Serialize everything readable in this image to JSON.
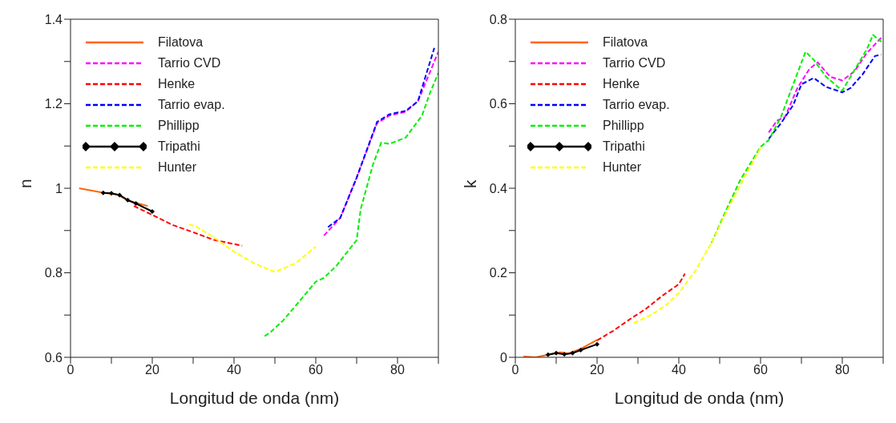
{
  "chart_data": [
    {
      "type": "line",
      "xlabel": "Longitud de onda (nm)",
      "ylabel": "n",
      "xlim": [
        0,
        90
      ],
      "ylim": [
        0.6,
        1.4
      ],
      "xticks": [
        0,
        {
          "value": 10,
          "label": null
        },
        20,
        {
          "value": 30,
          "label": null
        },
        40,
        {
          "value": 50,
          "label": null
        },
        60,
        {
          "value": 70,
          "label": null
        },
        80,
        {
          "value": 90,
          "label": null
        }
      ],
      "yticks": [
        0.6,
        {
          "value": 0.7,
          "label": null
        },
        0.8,
        {
          "value": 0.9,
          "label": null
        },
        1,
        {
          "value": 1.1,
          "label": null
        },
        1.2,
        {
          "value": 1.3,
          "label": null
        },
        1.4
      ],
      "legend": "top left",
      "series": [
        {
          "name": "Filatova",
          "color": "#ff6600",
          "line_style": "solid",
          "x": [
            2.1,
            8.2,
            11.5,
            14.2,
            18.9
          ],
          "values": [
            1.0,
            0.989,
            0.985,
            0.97,
            0.958
          ]
        },
        {
          "name": "Tarrio CVD",
          "color": "#ff00ff",
          "line_style": "dashed",
          "x": [
            62,
            66,
            70,
            75,
            78,
            82,
            85,
            90
          ],
          "values": [
            0.888,
            0.93,
            1.025,
            1.154,
            1.172,
            1.181,
            1.206,
            1.323
          ]
        },
        {
          "name": "Henke",
          "color": "#ff0000",
          "line_style": "dashed",
          "x": [
            15.5,
            20,
            25,
            30,
            35,
            42
          ],
          "values": [
            0.958,
            0.937,
            0.913,
            0.896,
            0.878,
            0.864
          ]
        },
        {
          "name": "Tarrio evap.",
          "color": "#0000ff",
          "line_style": "dashed",
          "x": [
            63,
            66,
            70,
            75,
            78,
            82,
            85,
            89
          ],
          "values": [
            0.908,
            0.93,
            1.025,
            1.157,
            1.175,
            1.183,
            1.206,
            1.332
          ]
        },
        {
          "name": "Phillipp",
          "color": "#00ee00",
          "line_style": "dashed",
          "x": [
            47.5,
            49,
            52,
            55,
            60,
            62,
            65,
            68,
            70,
            71,
            74,
            76,
            78,
            82,
            86,
            88,
            90
          ],
          "values": [
            0.65,
            0.66,
            0.687,
            0.721,
            0.779,
            0.788,
            0.816,
            0.853,
            0.877,
            0.951,
            1.056,
            1.108,
            1.105,
            1.12,
            1.172,
            1.227,
            1.273
          ]
        },
        {
          "name": "Tripathi",
          "color": "#000000",
          "line_style": "solid",
          "marker": "diamond",
          "x": [
            8,
            10,
            12,
            14,
            16,
            20
          ],
          "values": [
            0.989,
            0.988,
            0.984,
            0.972,
            0.964,
            0.945
          ]
        },
        {
          "name": "Hunter",
          "color": "#ffff00",
          "line_style": "dashed",
          "x": [
            29,
            31,
            35,
            40,
            45,
            50,
            55,
            60
          ],
          "values": [
            0.915,
            0.908,
            0.884,
            0.85,
            0.822,
            0.802,
            0.822,
            0.862
          ]
        }
      ]
    },
    {
      "type": "line",
      "xlabel": "Longitud de onda (nm)",
      "ylabel": "k",
      "xlim": [
        0,
        90
      ],
      "ylim": [
        0,
        0.8
      ],
      "xticks": [
        0,
        {
          "value": 10,
          "label": null
        },
        20,
        {
          "value": 30,
          "label": null
        },
        40,
        {
          "value": 50,
          "label": null
        },
        60,
        {
          "value": 70,
          "label": null
        },
        80,
        {
          "value": 90,
          "label": null
        }
      ],
      "yticks": [
        0,
        {
          "value": 0.1,
          "label": null
        },
        0.2,
        {
          "value": 0.3,
          "label": null
        },
        0.4,
        {
          "value": 0.5,
          "label": null
        },
        0.6,
        {
          "value": 0.7,
          "label": null
        },
        0.8
      ],
      "legend": "top left",
      "series": [
        {
          "name": "Filatova",
          "color": "#ff6600",
          "line_style": "solid",
          "x": [
            2,
            5,
            8,
            11,
            13,
            16,
            20
          ],
          "values": [
            0.002,
            0,
            0.006,
            0.012,
            0.009,
            0.02,
            0.041
          ]
        },
        {
          "name": "Tarrio CVD",
          "color": "#ff00ff",
          "line_style": "dashed",
          "x": [
            62,
            64,
            66,
            69,
            72,
            74,
            77,
            80,
            83,
            86,
            89.5
          ],
          "values": [
            0.532,
            0.56,
            0.569,
            0.637,
            0.683,
            0.698,
            0.664,
            0.655,
            0.677,
            0.72,
            0.756
          ]
        },
        {
          "name": "Henke",
          "color": "#ff0000",
          "line_style": "dashed",
          "x": [
            20,
            24,
            28,
            32,
            36,
            40,
            41.5
          ],
          "values": [
            0.04,
            0.063,
            0.09,
            0.115,
            0.146,
            0.173,
            0.198
          ]
        },
        {
          "name": "Tarrio evap.",
          "color": "#0000ff",
          "line_style": "dashed",
          "x": [
            62,
            65,
            68,
            70,
            73,
            76,
            80,
            82,
            85,
            88,
            89.5
          ],
          "values": [
            0.517,
            0.554,
            0.597,
            0.646,
            0.661,
            0.64,
            0.627,
            0.637,
            0.67,
            0.713,
            0.716
          ]
        },
        {
          "name": "Phillipp",
          "color": "#00ee00",
          "line_style": "dashed",
          "x": [
            48,
            52,
            55,
            60,
            62,
            65,
            68,
            71,
            73,
            76,
            80,
            83,
            86,
            87.5,
            89.5
          ],
          "values": [
            0.271,
            0.357,
            0.419,
            0.498,
            0.514,
            0.569,
            0.646,
            0.723,
            0.704,
            0.664,
            0.631,
            0.68,
            0.729,
            0.763,
            0.747
          ]
        },
        {
          "name": "Tripathi",
          "color": "#000000",
          "line_style": "solid",
          "marker": "diamond",
          "x": [
            8,
            10,
            12,
            14,
            16,
            20
          ],
          "values": [
            0.006,
            0.01,
            0.007,
            0.01,
            0.017,
            0.031
          ]
        },
        {
          "name": "Hunter",
          "color": "#ffff00",
          "line_style": "dashed",
          "x": [
            29,
            33,
            37,
            40,
            44,
            48,
            52,
            56,
            60
          ],
          "values": [
            0.081,
            0.099,
            0.124,
            0.152,
            0.204,
            0.271,
            0.351,
            0.425,
            0.495
          ]
        }
      ]
    }
  ]
}
